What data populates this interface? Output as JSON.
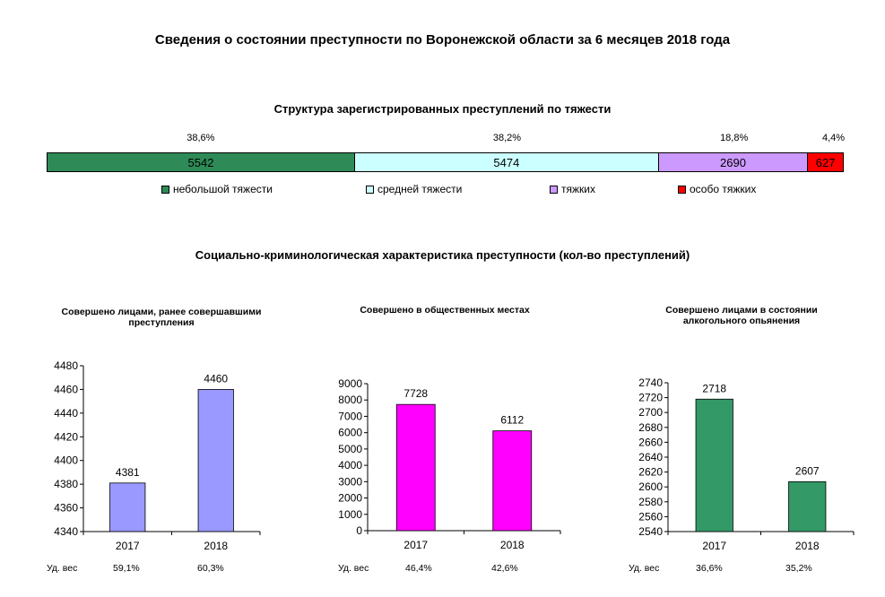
{
  "title": "Сведения о состоянии преступности по Воронежской области  за 6 месяцев 2018 года",
  "structure": {
    "title": "Структура зарегистрированных преступлений по тяжести",
    "segments": [
      {
        "label": "небольшой тяжести",
        "value": 5542,
        "value_label": "5542",
        "pct": "38,6%",
        "color": "#2e8b57"
      },
      {
        "label": "средней тяжести",
        "value": 5474,
        "value_label": "5474",
        "pct": "38,2%",
        "color": "#ccffff"
      },
      {
        "label": "тяжких",
        "value": 2690,
        "value_label": "2690",
        "pct": "18,8%",
        "color": "#cc99ff"
      },
      {
        "label": "особо тяжких",
        "value": 627,
        "value_label": "627",
        "pct": "4,4%",
        "color": "#ff0000"
      }
    ]
  },
  "social_title": "Социально-криминологическая характеристика преступности (кол-во преступлений)",
  "ud_label": "Уд. вес",
  "chart_data": [
    {
      "type": "bar",
      "title": "Совершено лицами, ранее совершавшими преступления",
      "categories": [
        "2017",
        "2018"
      ],
      "values": [
        4381,
        4460
      ],
      "value_labels": [
        "4381",
        "4460"
      ],
      "shares": [
        "59,1%",
        "60,3%"
      ],
      "ylim": [
        4340,
        4480
      ],
      "yticks": [
        4340,
        4360,
        4380,
        4400,
        4420,
        4440,
        4460,
        4480
      ],
      "color": "#9999ff"
    },
    {
      "type": "bar",
      "title": "Совершено в общественных местах",
      "categories": [
        "2017",
        "2018"
      ],
      "values": [
        7728,
        6112
      ],
      "value_labels": [
        "7728",
        "6112"
      ],
      "shares": [
        "46,4%",
        "42,6%"
      ],
      "ylim": [
        0,
        9000
      ],
      "yticks": [
        0,
        1000,
        2000,
        3000,
        4000,
        5000,
        6000,
        7000,
        8000,
        9000
      ],
      "color": "#ff00ff"
    },
    {
      "type": "bar",
      "title": "Совершено лицами в состоянии алкогольного опьянения",
      "categories": [
        "2017",
        "2018"
      ],
      "values": [
        2718,
        2607
      ],
      "value_labels": [
        "2718",
        "2607"
      ],
      "shares": [
        "36,6%",
        "35,2%"
      ],
      "ylim": [
        2540,
        2740
      ],
      "yticks": [
        2540,
        2560,
        2580,
        2600,
        2620,
        2640,
        2660,
        2680,
        2700,
        2720,
        2740
      ],
      "color": "#339966"
    }
  ]
}
